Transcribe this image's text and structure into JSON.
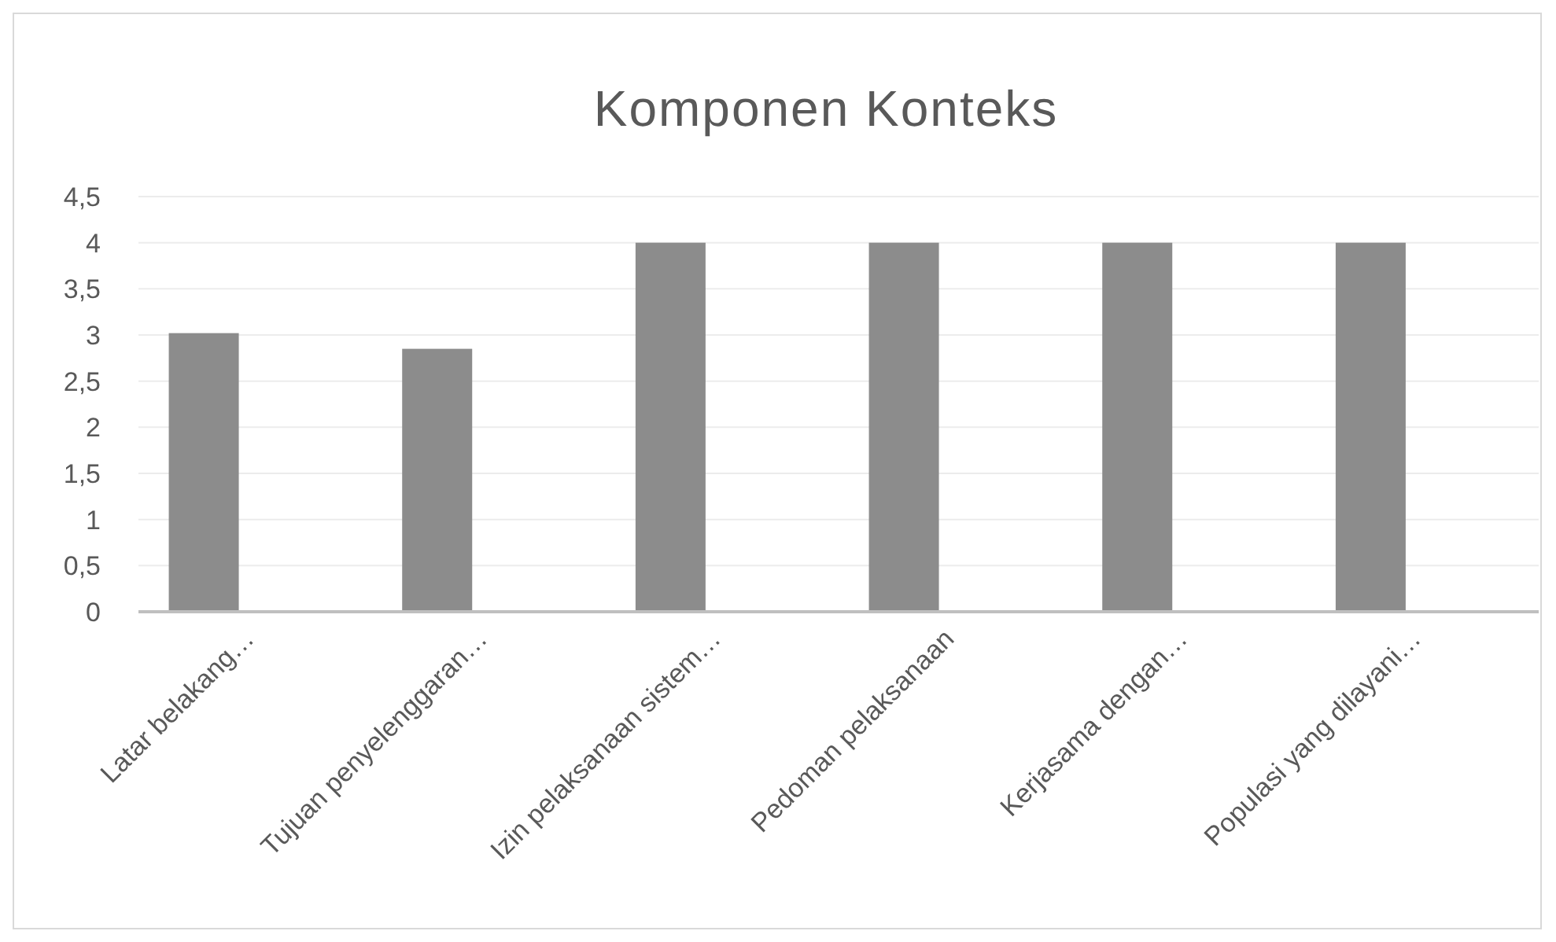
{
  "chart_data": {
    "type": "bar",
    "title": "Komponen Konteks",
    "categories": [
      "Latar belakang…",
      "Tujuan penyelenggaran…",
      "Izin pelaksanaan sistem…",
      "Pedoman pelaksanaan",
      "Kerjasama dengan…",
      "Populasi yang dilayani…"
    ],
    "values": [
      3.02,
      2.85,
      4,
      4,
      4,
      4
    ],
    "color": "#8c8c8c",
    "ylim": [
      0,
      4.5
    ],
    "yticks": [
      0,
      {
        "value": 0.5,
        "label": "0,5"
      },
      1,
      {
        "value": 1.5,
        "label": "1,5"
      },
      2,
      {
        "value": 2.5,
        "label": "2,5"
      },
      3,
      {
        "value": 3.5,
        "label": "3,5"
      },
      4,
      {
        "value": 4.5,
        "label": "4,5"
      }
    ],
    "grid": true
  }
}
